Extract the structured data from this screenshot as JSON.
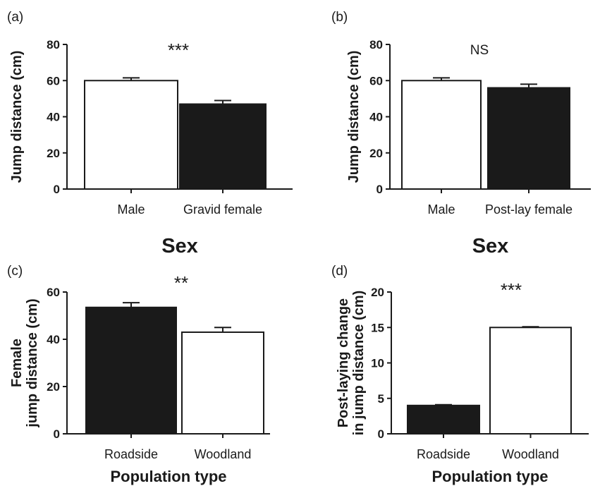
{
  "chart_data": [
    {
      "panel": "(a)",
      "type": "bar",
      "categories": [
        "Male",
        "Gravid female"
      ],
      "values": [
        60,
        47
      ],
      "errors": [
        1.5,
        2
      ],
      "bar_colors": [
        "#ffffff",
        "#1a1a1a"
      ],
      "ylim": [
        0,
        80
      ],
      "yticks": [
        "0",
        "20",
        "40",
        "60",
        "80"
      ],
      "ylabel": [
        "Jump distance (cm)"
      ],
      "xlabel": "Sex",
      "significance": "***"
    },
    {
      "panel": "(b)",
      "type": "bar",
      "categories": [
        "Male",
        "Post-lay female"
      ],
      "values": [
        60,
        56
      ],
      "errors": [
        1.5,
        2
      ],
      "bar_colors": [
        "#ffffff",
        "#1a1a1a"
      ],
      "ylim": [
        0,
        80
      ],
      "yticks": [
        "0",
        "20",
        "40",
        "60",
        "80"
      ],
      "ylabel": [
        "Jump distance (cm)"
      ],
      "xlabel": "Sex",
      "significance": "NS"
    },
    {
      "panel": "(c)",
      "type": "bar",
      "categories": [
        "Roadside",
        "Woodland"
      ],
      "values": [
        53.5,
        43
      ],
      "errors": [
        2,
        2
      ],
      "bar_colors": [
        "#1a1a1a",
        "#ffffff"
      ],
      "ylim": [
        0,
        60
      ],
      "yticks": [
        "0",
        "20",
        "40",
        "60"
      ],
      "ylabel": [
        "Female",
        "jump distance (cm)"
      ],
      "xlabel": "Population type",
      "significance": "**"
    },
    {
      "panel": "(d)",
      "type": "bar",
      "categories": [
        "Roadside",
        "Woodland"
      ],
      "values": [
        4,
        15
      ],
      "errors": [
        0.1,
        0.1
      ],
      "bar_colors": [
        "#1a1a1a",
        "#ffffff"
      ],
      "ylim": [
        0,
        20
      ],
      "yticks": [
        "0",
        "5",
        "10",
        "15",
        "20"
      ],
      "ylabel": [
        "Post-laying change",
        "in jump distance (cm)"
      ],
      "xlabel": "Population type",
      "significance": "***"
    }
  ]
}
